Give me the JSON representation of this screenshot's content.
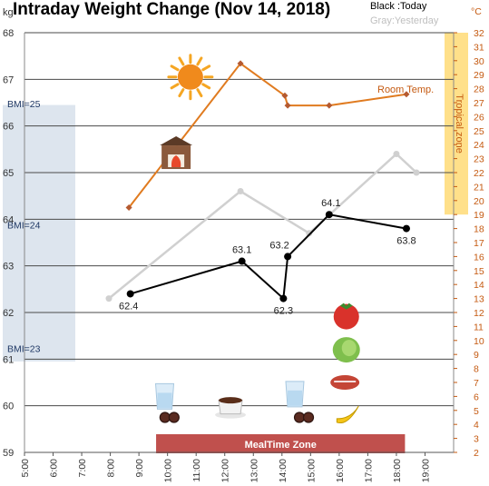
{
  "chart_data": {
    "type": "line",
    "title": "Intraday Weight Change (Nov 14, 2018)",
    "legend": {
      "today": "Black :Today",
      "yesterday": "Gray:Yesterday"
    },
    "left_axis": {
      "unit": "kg",
      "min": 59,
      "max": 68,
      "ticks": [
        59,
        60,
        61,
        62,
        63,
        64,
        65,
        66,
        67,
        68
      ]
    },
    "right_axis": {
      "unit": "°C",
      "min": 2,
      "max": 32
    },
    "x_axis": {
      "min_hours": 5,
      "max_hours": 20,
      "ticks": [
        {
          "h": 5,
          "label": "5:00"
        },
        {
          "h": 6,
          "label": "6:00"
        },
        {
          "h": 7,
          "label": "7:00"
        },
        {
          "h": 8,
          "label": "8:00"
        },
        {
          "h": 9,
          "label": "9:00"
        },
        {
          "h": 10,
          "label": "10:00"
        },
        {
          "h": 11,
          "label": "11:00"
        },
        {
          "h": 12,
          "label": "12:00"
        },
        {
          "h": 13,
          "label": "13:00"
        },
        {
          "h": 14,
          "label": "14:00"
        },
        {
          "h": 15,
          "label": "15:00"
        },
        {
          "h": 16,
          "label": "16:00"
        },
        {
          "h": 17,
          "label": "17:00"
        },
        {
          "h": 18,
          "label": "18:00"
        },
        {
          "h": 19,
          "label": "19:00"
        }
      ]
    },
    "series": [
      {
        "name": "Today",
        "color": "#000000",
        "axis": "left",
        "x": [
          8.7,
          12.6,
          14.05,
          14.2,
          15.65,
          18.35
        ],
        "y": [
          62.4,
          63.1,
          62.3,
          63.2,
          64.1,
          63.8
        ],
        "labels": [
          "62.4",
          "63.1",
          "62.3",
          "63.2",
          "64.1",
          "63.8"
        ]
      },
      {
        "name": "Yesterday",
        "color": "#d0d0d0",
        "axis": "left",
        "x": [
          7.95,
          12.55,
          14.95,
          18.0,
          18.7
        ],
        "y": [
          62.3,
          64.6,
          63.7,
          65.4,
          65.0
        ]
      },
      {
        "name": "Room Temp.",
        "color": "#e07b20",
        "axis": "right",
        "x": [
          8.65,
          12.55,
          14.1,
          14.2,
          15.65,
          18.35
        ],
        "y": [
          19.5,
          29.8,
          27.5,
          26.8,
          26.8,
          27.6
        ]
      }
    ],
    "bands": {
      "bmi_labels": [
        {
          "text": "BMI=25",
          "y": 66.4
        },
        {
          "text": "BMI=24",
          "y": 63.8
        },
        {
          "text": "BMI=23",
          "y": 61.15
        }
      ],
      "tropical_zone": {
        "label": "Tropical zone",
        "from_c": 19,
        "to_c": 32
      },
      "meal_time_zone": {
        "label": "MealTime Zone",
        "from_h": 9.6,
        "to_h": 18.3
      }
    },
    "room_temp_label": "Room Temp.",
    "icons": [
      {
        "name": "sun-icon",
        "x_h": 10.8,
        "y_kg": 67.05
      },
      {
        "name": "fireplace-icon",
        "x_h": 10.3,
        "y_kg": 65.35
      },
      {
        "name": "water-glass-icon",
        "x_h": 9.9,
        "y_kg": 60.2
      },
      {
        "name": "pills-icon",
        "x_h": 10.1,
        "y_kg": 59.75
      },
      {
        "name": "coffee-icon",
        "x_h": 12.2,
        "y_kg": 60.0
      },
      {
        "name": "water-glass-icon",
        "x_h": 14.45,
        "y_kg": 60.25
      },
      {
        "name": "pills-icon",
        "x_h": 14.8,
        "y_kg": 59.75
      },
      {
        "name": "tomato-icon",
        "x_h": 16.25,
        "y_kg": 61.95
      },
      {
        "name": "lettuce-icon",
        "x_h": 16.25,
        "y_kg": 61.2
      },
      {
        "name": "steak-icon",
        "x_h": 16.2,
        "y_kg": 60.5
      },
      {
        "name": "banana-icon",
        "x_h": 16.3,
        "y_kg": 59.8
      }
    ]
  }
}
